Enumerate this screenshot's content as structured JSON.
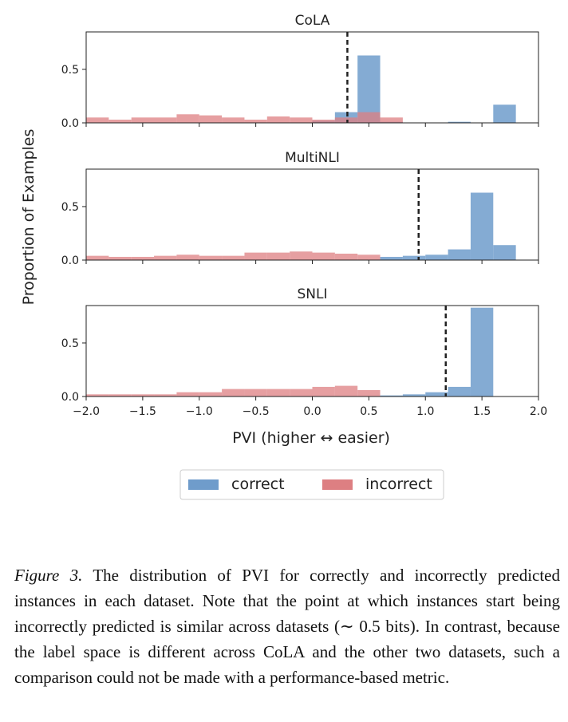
{
  "chart_data": {
    "type": "histogram",
    "shared_xlabel": "PVI (higher ↔ easier)",
    "shared_ylabel": "Proportion of Examples",
    "xlim": [
      -2.0,
      2.0
    ],
    "x_ticks": [
      "−2.0",
      "−1.5",
      "−1.0",
      "−0.5",
      "0.0",
      "0.5",
      "1.0",
      "1.5",
      "2.0"
    ],
    "x_tick_values": [
      -2.0,
      -1.5,
      -1.0,
      -0.5,
      0.0,
      0.5,
      1.0,
      1.5,
      2.0
    ],
    "legend": {
      "position": "below-center",
      "entries": [
        "correct",
        "incorrect"
      ]
    },
    "colors": {
      "correct": "#6f9ccb",
      "incorrect": "#dd7f82",
      "threshold": "#222222"
    },
    "panels": [
      {
        "title": "CoLA",
        "ylim": [
          0,
          0.85
        ],
        "y_ticks": [
          "0.0",
          "0.5"
        ],
        "y_tick_values": [
          0.0,
          0.5
        ],
        "threshold": 0.31,
        "series": [
          {
            "name": "correct",
            "bins": [
              [
                0.0,
                0.2,
                0.02
              ],
              [
                0.2,
                0.4,
                0.1
              ],
              [
                0.4,
                0.6,
                0.63
              ],
              [
                0.6,
                0.8,
                0.01
              ],
              [
                1.2,
                1.4,
                0.01
              ],
              [
                1.6,
                1.8,
                0.17
              ]
            ]
          },
          {
            "name": "incorrect",
            "bins": [
              [
                -2.0,
                -1.8,
                0.05
              ],
              [
                -1.8,
                -1.6,
                0.03
              ],
              [
                -1.6,
                -1.2,
                0.05
              ],
              [
                -1.2,
                -1.0,
                0.08
              ],
              [
                -1.0,
                -0.8,
                0.07
              ],
              [
                -0.8,
                -0.6,
                0.05
              ],
              [
                -0.6,
                -0.4,
                0.03
              ],
              [
                -0.4,
                -0.2,
                0.06
              ],
              [
                -0.2,
                0.0,
                0.05
              ],
              [
                0.0,
                0.2,
                0.03
              ],
              [
                0.2,
                0.4,
                0.05
              ],
              [
                0.4,
                0.6,
                0.1
              ],
              [
                0.6,
                0.8,
                0.05
              ]
            ]
          }
        ]
      },
      {
        "title": "MultiNLI",
        "ylim": [
          0,
          0.85
        ],
        "y_ticks": [
          "0.0",
          "0.5"
        ],
        "y_tick_values": [
          0.0,
          0.5
        ],
        "threshold": 0.94,
        "series": [
          {
            "name": "correct",
            "bins": [
              [
                0.6,
                0.8,
                0.03
              ],
              [
                0.8,
                1.0,
                0.04
              ],
              [
                1.0,
                1.2,
                0.05
              ],
              [
                1.2,
                1.4,
                0.1
              ],
              [
                1.4,
                1.6,
                0.63
              ],
              [
                1.6,
                1.8,
                0.14
              ]
            ]
          },
          {
            "name": "incorrect",
            "bins": [
              [
                -2.0,
                -1.8,
                0.04
              ],
              [
                -1.8,
                -1.6,
                0.03
              ],
              [
                -1.6,
                -1.4,
                0.03
              ],
              [
                -1.4,
                -1.2,
                0.04
              ],
              [
                -1.2,
                -1.0,
                0.05
              ],
              [
                -1.0,
                -0.8,
                0.04
              ],
              [
                -0.8,
                -0.6,
                0.04
              ],
              [
                -0.6,
                -0.4,
                0.07
              ],
              [
                -0.4,
                -0.2,
                0.07
              ],
              [
                -0.2,
                0.0,
                0.08
              ],
              [
                0.0,
                0.2,
                0.07
              ],
              [
                0.2,
                0.4,
                0.06
              ],
              [
                0.4,
                0.6,
                0.05
              ]
            ]
          }
        ]
      },
      {
        "title": "SNLI",
        "ylim": [
          0,
          0.85
        ],
        "y_ticks": [
          "0.0",
          "0.5"
        ],
        "y_tick_values": [
          0.0,
          0.5
        ],
        "threshold": 1.18,
        "series": [
          {
            "name": "correct",
            "bins": [
              [
                0.6,
                0.8,
                0.01
              ],
              [
                0.8,
                1.0,
                0.02
              ],
              [
                1.0,
                1.2,
                0.04
              ],
              [
                1.2,
                1.4,
                0.09
              ],
              [
                1.4,
                1.6,
                0.83
              ]
            ]
          },
          {
            "name": "incorrect",
            "bins": [
              [
                -2.0,
                -1.8,
                0.02
              ],
              [
                -1.8,
                -1.6,
                0.02
              ],
              [
                -1.6,
                -1.4,
                0.02
              ],
              [
                -1.4,
                -1.2,
                0.02
              ],
              [
                -1.2,
                -1.0,
                0.04
              ],
              [
                -1.0,
                -0.8,
                0.04
              ],
              [
                -0.8,
                -0.6,
                0.07
              ],
              [
                -0.6,
                -0.4,
                0.07
              ],
              [
                -0.4,
                -0.2,
                0.07
              ],
              [
                -0.2,
                0.0,
                0.07
              ],
              [
                0.0,
                0.2,
                0.09
              ],
              [
                0.2,
                0.4,
                0.1
              ],
              [
                0.4,
                0.6,
                0.06
              ]
            ]
          }
        ]
      }
    ]
  },
  "caption": {
    "label": "Figure 3.",
    "text_before": "The distribution of",
    "pvi_term": "PVI",
    "text_after": "for correctly and incorrectly predicted instances in each dataset.  Note that the point at which instances start being incorrectly predicted is similar across datasets (∼ 0.5 bits). In contrast, because the label space is different across CoLA and the other two datasets, such a comparison could not be made with a performance-based metric."
  }
}
